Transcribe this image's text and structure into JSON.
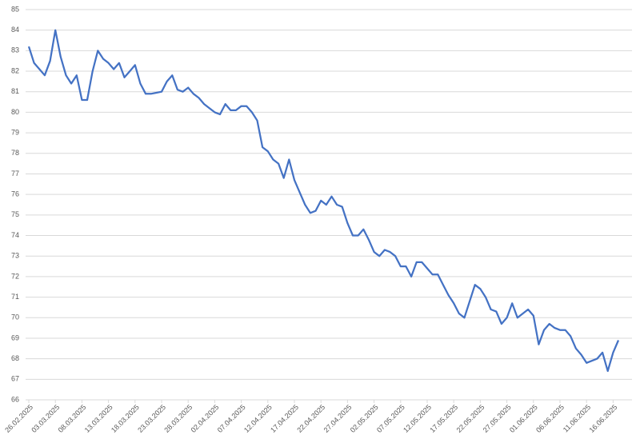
{
  "chart_data": {
    "type": "line",
    "x": [
      "26.02.2025",
      "27.02.2025",
      "28.02.2025",
      "01.03.2025",
      "02.03.2025",
      "03.03.2025",
      "04.03.2025",
      "05.03.2025",
      "06.03.2025",
      "07.03.2025",
      "08.03.2025",
      "09.03.2025",
      "10.03.2025",
      "11.03.2025",
      "12.03.2025",
      "13.03.2025",
      "14.03.2025",
      "15.03.2025",
      "16.03.2025",
      "17.03.2025",
      "18.03.2025",
      "19.03.2025",
      "20.03.2025",
      "21.03.2025",
      "22.03.2025",
      "23.03.2025",
      "24.03.2025",
      "25.03.2025",
      "26.03.2025",
      "27.03.2025",
      "28.03.2025",
      "29.03.2025",
      "30.03.2025",
      "31.03.2025",
      "01.04.2025",
      "02.04.2025",
      "03.04.2025",
      "04.04.2025",
      "05.04.2025",
      "06.04.2025",
      "07.04.2025",
      "08.04.2025",
      "09.04.2025",
      "10.04.2025",
      "11.04.2025",
      "12.04.2025",
      "13.04.2025",
      "14.04.2025",
      "15.04.2025",
      "16.04.2025",
      "17.04.2025",
      "18.04.2025",
      "19.04.2025",
      "20.04.2025",
      "21.04.2025",
      "22.04.2025",
      "23.04.2025",
      "24.04.2025",
      "25.04.2025",
      "26.04.2025",
      "27.04.2025",
      "28.04.2025",
      "29.04.2025",
      "30.04.2025",
      "01.05.2025",
      "02.05.2025",
      "03.05.2025",
      "04.05.2025",
      "05.05.2025",
      "06.05.2025",
      "07.05.2025",
      "08.05.2025",
      "09.05.2025",
      "10.05.2025",
      "11.05.2025",
      "12.05.2025",
      "13.05.2025",
      "14.05.2025",
      "15.05.2025",
      "16.05.2025",
      "17.05.2025",
      "18.05.2025",
      "19.05.2025",
      "20.05.2025",
      "21.05.2025",
      "22.05.2025",
      "23.05.2025",
      "24.05.2025",
      "25.05.2025",
      "26.05.2025",
      "27.05.2025",
      "28.05.2025",
      "29.05.2025",
      "30.05.2025",
      "31.05.2025",
      "01.06.2025",
      "02.06.2025",
      "03.06.2025",
      "04.06.2025",
      "05.06.2025",
      "06.06.2025",
      "07.06.2025",
      "08.06.2025",
      "09.06.2025",
      "10.06.2025",
      "11.06.2025",
      "12.06.2025",
      "13.06.2025",
      "14.06.2025",
      "15.06.2025",
      "16.06.2025",
      "17.06.2025"
    ],
    "series": [
      {
        "color": "#4472c4",
        "values": [
          83.2,
          82.4,
          82.1,
          81.8,
          82.5,
          84.0,
          82.7,
          81.8,
          81.4,
          81.8,
          80.6,
          80.6,
          82.0,
          83.0,
          82.6,
          82.4,
          82.1,
          82.4,
          81.7,
          82.0,
          82.3,
          81.4,
          80.9,
          80.9,
          80.95,
          81.0,
          81.5,
          81.8,
          81.1,
          81.0,
          81.2,
          80.9,
          80.7,
          80.4,
          80.2,
          80.0,
          79.9,
          80.4,
          80.1,
          80.1,
          80.3,
          80.3,
          80.0,
          79.6,
          78.3,
          78.1,
          77.7,
          77.5,
          76.8,
          77.7,
          76.7,
          76.1,
          75.5,
          75.1,
          75.2,
          75.7,
          75.5,
          75.9,
          75.5,
          75.4,
          74.6,
          74.0,
          74.0,
          74.3,
          73.8,
          73.2,
          73.0,
          73.3,
          73.2,
          73.0,
          72.5,
          72.5,
          72.0,
          72.7,
          72.7,
          72.4,
          72.1,
          72.1,
          71.6,
          71.1,
          70.7,
          70.2,
          70.0,
          70.8,
          71.6,
          71.4,
          71.0,
          70.4,
          70.3,
          69.7,
          70.0,
          70.7,
          70.0,
          70.2,
          70.4,
          70.1,
          68.7,
          69.4,
          69.7,
          69.5,
          69.4,
          69.4,
          69.1,
          68.5,
          68.2,
          67.8,
          67.9,
          68.0,
          68.3,
          67.4,
          68.3,
          68.9
        ]
      }
    ],
    "xlim": [
      "26.02.2025",
      "17.06.2025"
    ],
    "xticks": [
      "26.02.2025",
      "03.03.2025",
      "08.03.2025",
      "13.03.2025",
      "18.03.2025",
      "23.03.2025",
      "28.03.2025",
      "02.04.2025",
      "07.04.2025",
      "12.04.2025",
      "17.04.2025",
      "22.04.2025",
      "27.04.2025",
      "02.05.2025",
      "07.05.2025",
      "12.05.2025",
      "17.05.2025",
      "22.05.2025",
      "27.05.2025",
      "01.06.2025",
      "06.06.2025",
      "11.06.2025",
      "16.06.2025"
    ],
    "ylim": [
      66,
      85
    ],
    "yticks": [
      66,
      67,
      68,
      69,
      70,
      71,
      72,
      73,
      74,
      75,
      76,
      77,
      78,
      79,
      80,
      81,
      82,
      83,
      84,
      85
    ],
    "grid": true
  }
}
